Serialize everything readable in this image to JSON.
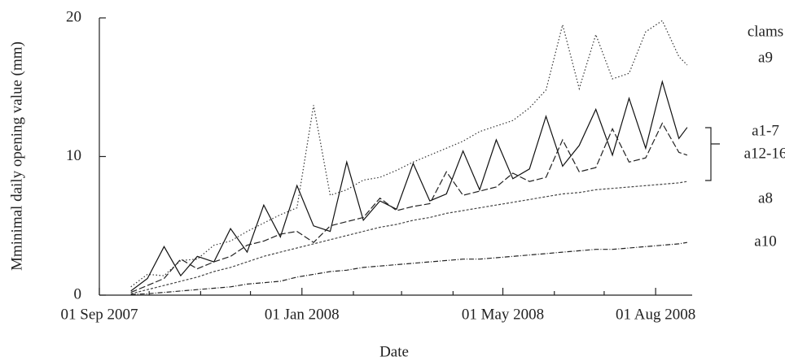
{
  "chart_data": {
    "type": "line",
    "x_label": "Date",
    "y_label": "Mminimal daily opening value (mm)",
    "legend_title": "clams",
    "x": [
      "2007-09-20",
      "2007-09-30",
      "2007-10-10",
      "2007-10-20",
      "2007-10-30",
      "2007-11-09",
      "2007-11-19",
      "2007-11-29",
      "2007-12-09",
      "2007-12-19",
      "2007-12-29",
      "2008-01-08",
      "2008-01-18",
      "2008-01-28",
      "2008-02-07",
      "2008-02-17",
      "2008-02-27",
      "2008-03-08",
      "2008-03-18",
      "2008-03-28",
      "2008-04-07",
      "2008-04-17",
      "2008-04-27",
      "2008-05-07",
      "2008-05-17",
      "2008-05-27",
      "2008-06-06",
      "2008-06-16",
      "2008-06-26",
      "2008-07-06",
      "2008-07-16",
      "2008-07-26",
      "2008-08-05",
      "2008-08-15",
      "2008-08-20"
    ],
    "series": [
      {
        "name": "a9",
        "color": "#333",
        "dash": "1.5,2.5",
        "values": [
          0.6,
          1.5,
          1.4,
          2.5,
          2.6,
          3.6,
          3.9,
          4.6,
          5.2,
          5.8,
          6.3,
          13.7,
          7.2,
          7.6,
          8.3,
          8.5,
          9.0,
          9.6,
          10.1,
          10.6,
          11.1,
          11.8,
          12.2,
          12.6,
          13.5,
          14.8,
          19.5,
          14.9,
          18.8,
          15.6,
          16.0,
          19.0,
          19.8,
          17.2,
          16.6
        ]
      },
      {
        "name": "a1-7",
        "color": "#111",
        "dash": "none",
        "values": [
          0.3,
          1.2,
          3.5,
          1.4,
          2.8,
          2.4,
          4.8,
          3.1,
          6.5,
          4.2,
          7.9,
          5.0,
          4.6,
          9.6,
          5.4,
          6.8,
          6.2,
          9.5,
          6.8,
          7.3,
          10.4,
          7.6,
          11.2,
          8.4,
          9.1,
          12.9,
          9.3,
          10.8,
          13.4,
          10.1,
          14.2,
          10.6,
          15.4,
          11.3,
          12.1
        ]
      },
      {
        "name": "a12-16",
        "color": "#222",
        "dash": "8,3",
        "values": [
          0.2,
          0.7,
          1.2,
          2.6,
          1.9,
          2.4,
          2.8,
          3.6,
          3.9,
          4.4,
          4.6,
          3.8,
          5.0,
          5.3,
          5.6,
          7.0,
          6.1,
          6.4,
          6.6,
          8.9,
          7.2,
          7.5,
          7.8,
          8.8,
          8.2,
          8.5,
          11.2,
          8.9,
          9.2,
          12.0,
          9.6,
          9.9,
          12.4,
          10.3,
          10.1
        ]
      },
      {
        "name": "a8",
        "color": "#444",
        "dash": "3,2",
        "values": [
          0.1,
          0.4,
          0.7,
          1.0,
          1.3,
          1.7,
          2.0,
          2.4,
          2.8,
          3.1,
          3.4,
          3.7,
          4.0,
          4.3,
          4.6,
          4.9,
          5.1,
          5.4,
          5.6,
          5.9,
          6.1,
          6.3,
          6.5,
          6.7,
          6.9,
          7.1,
          7.3,
          7.4,
          7.6,
          7.7,
          7.8,
          7.9,
          8.0,
          8.1,
          8.2
        ]
      },
      {
        "name": "a10",
        "color": "#222",
        "dash": "6,2,1,2",
        "values": [
          0.05,
          0.1,
          0.2,
          0.3,
          0.4,
          0.5,
          0.6,
          0.8,
          0.9,
          1.0,
          1.3,
          1.5,
          1.7,
          1.8,
          2.0,
          2.1,
          2.2,
          2.3,
          2.4,
          2.5,
          2.6,
          2.6,
          2.7,
          2.8,
          2.9,
          3.0,
          3.1,
          3.2,
          3.3,
          3.3,
          3.4,
          3.5,
          3.6,
          3.7,
          3.8
        ]
      }
    ],
    "xlim": [
      "2007-09-01",
      "2008-08-23"
    ],
    "xticks": [
      {
        "value": "2007-09-01",
        "label": "01 Sep 2007"
      },
      {
        "value": "2008-01-01",
        "label": "01 Jan 2008"
      },
      {
        "value": "2008-05-01",
        "label": "01 May 2008"
      },
      {
        "value": "2008-08-01",
        "label": "01 Aug 2008"
      }
    ],
    "minor_xticks": [
      "2007-10-01",
      "2007-11-01",
      "2007-12-01",
      "2008-02-01",
      "2008-03-01",
      "2008-04-01",
      "2008-06-01",
      "2008-07-01"
    ],
    "ylim": [
      0,
      20
    ],
    "yticks": [
      0,
      10,
      20
    ],
    "grid": false
  }
}
